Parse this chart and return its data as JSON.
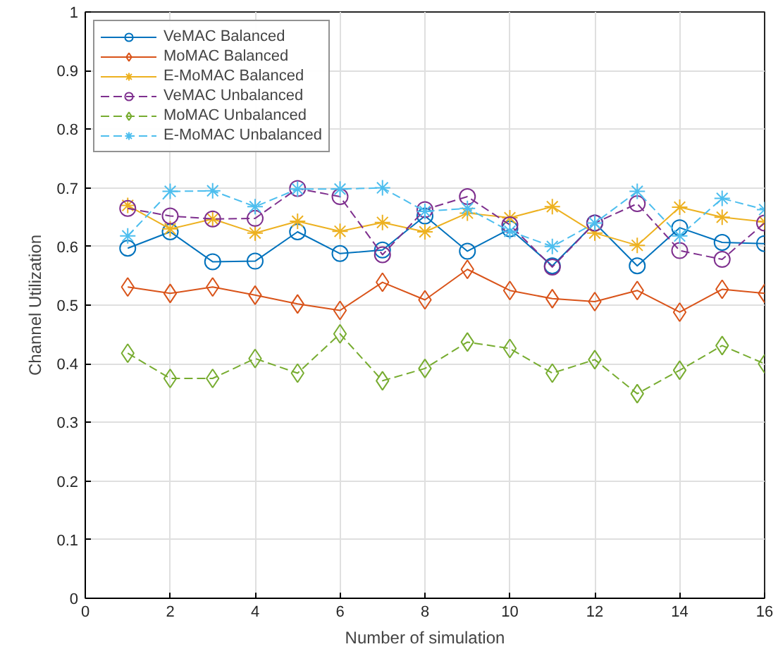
{
  "chart_data": {
    "type": "line",
    "xlabel": "Number of simulation",
    "ylabel": "Channel Utilization",
    "x": [
      1,
      2,
      3,
      4,
      5,
      6,
      7,
      8,
      9,
      10,
      11,
      12,
      13,
      14,
      15,
      16
    ],
    "xlim": [
      0,
      16
    ],
    "xticks": [
      0,
      2,
      4,
      6,
      8,
      10,
      12,
      14,
      16
    ],
    "ylim": [
      0,
      1
    ],
    "yticks": [
      0,
      0.1,
      0.2,
      0.3,
      0.4,
      0.5,
      0.6,
      0.7,
      0.8,
      0.9,
      1
    ],
    "grid": true,
    "legend": "top left",
    "series": [
      {
        "name": "VeMAC Balanced",
        "color": "#0072bd",
        "marker": "circle",
        "line_style": "solid",
        "values": [
          0.597,
          0.625,
          0.574,
          0.575,
          0.625,
          0.588,
          0.594,
          0.652,
          0.592,
          0.63,
          0.567,
          0.64,
          0.567,
          0.632,
          0.607,
          0.605
        ]
      },
      {
        "name": "MoMAC Balanced",
        "color": "#d95319",
        "marker": "diamond",
        "line_style": "solid",
        "values": [
          0.531,
          0.52,
          0.531,
          0.517,
          0.502,
          0.491,
          0.539,
          0.509,
          0.561,
          0.525,
          0.511,
          0.506,
          0.525,
          0.488,
          0.527,
          0.52
        ]
      },
      {
        "name": "E-MoMAC Balanced",
        "color": "#edb120",
        "marker": "cross",
        "line_style": "solid",
        "values": [
          0.67,
          0.63,
          0.647,
          0.623,
          0.643,
          0.626,
          0.641,
          0.625,
          0.657,
          0.649,
          0.668,
          0.623,
          0.602,
          0.667,
          0.65,
          0.642
        ]
      },
      {
        "name": "VeMAC Unbalanced",
        "color": "#7e2f8e",
        "marker": "circle",
        "line_style": "dashed",
        "values": [
          0.665,
          0.652,
          0.647,
          0.648,
          0.699,
          0.685,
          0.586,
          0.663,
          0.685,
          0.637,
          0.565,
          0.64,
          0.673,
          0.593,
          0.578,
          0.64
        ]
      },
      {
        "name": "MoMAC Unbalanced",
        "color": "#77ac30",
        "marker": "diamond",
        "line_style": "dashed",
        "values": [
          0.418,
          0.375,
          0.375,
          0.409,
          0.384,
          0.451,
          0.371,
          0.392,
          0.437,
          0.426,
          0.384,
          0.407,
          0.349,
          0.389,
          0.431,
          0.4
        ]
      },
      {
        "name": "E-MoMAC Unbalanced",
        "color": "#4dbeee",
        "marker": "cross",
        "line_style": "dashed",
        "values": [
          0.618,
          0.694,
          0.695,
          0.668,
          0.698,
          0.698,
          0.7,
          0.66,
          0.665,
          0.626,
          0.6,
          0.64,
          0.694,
          0.618,
          0.682,
          0.663
        ]
      }
    ]
  }
}
